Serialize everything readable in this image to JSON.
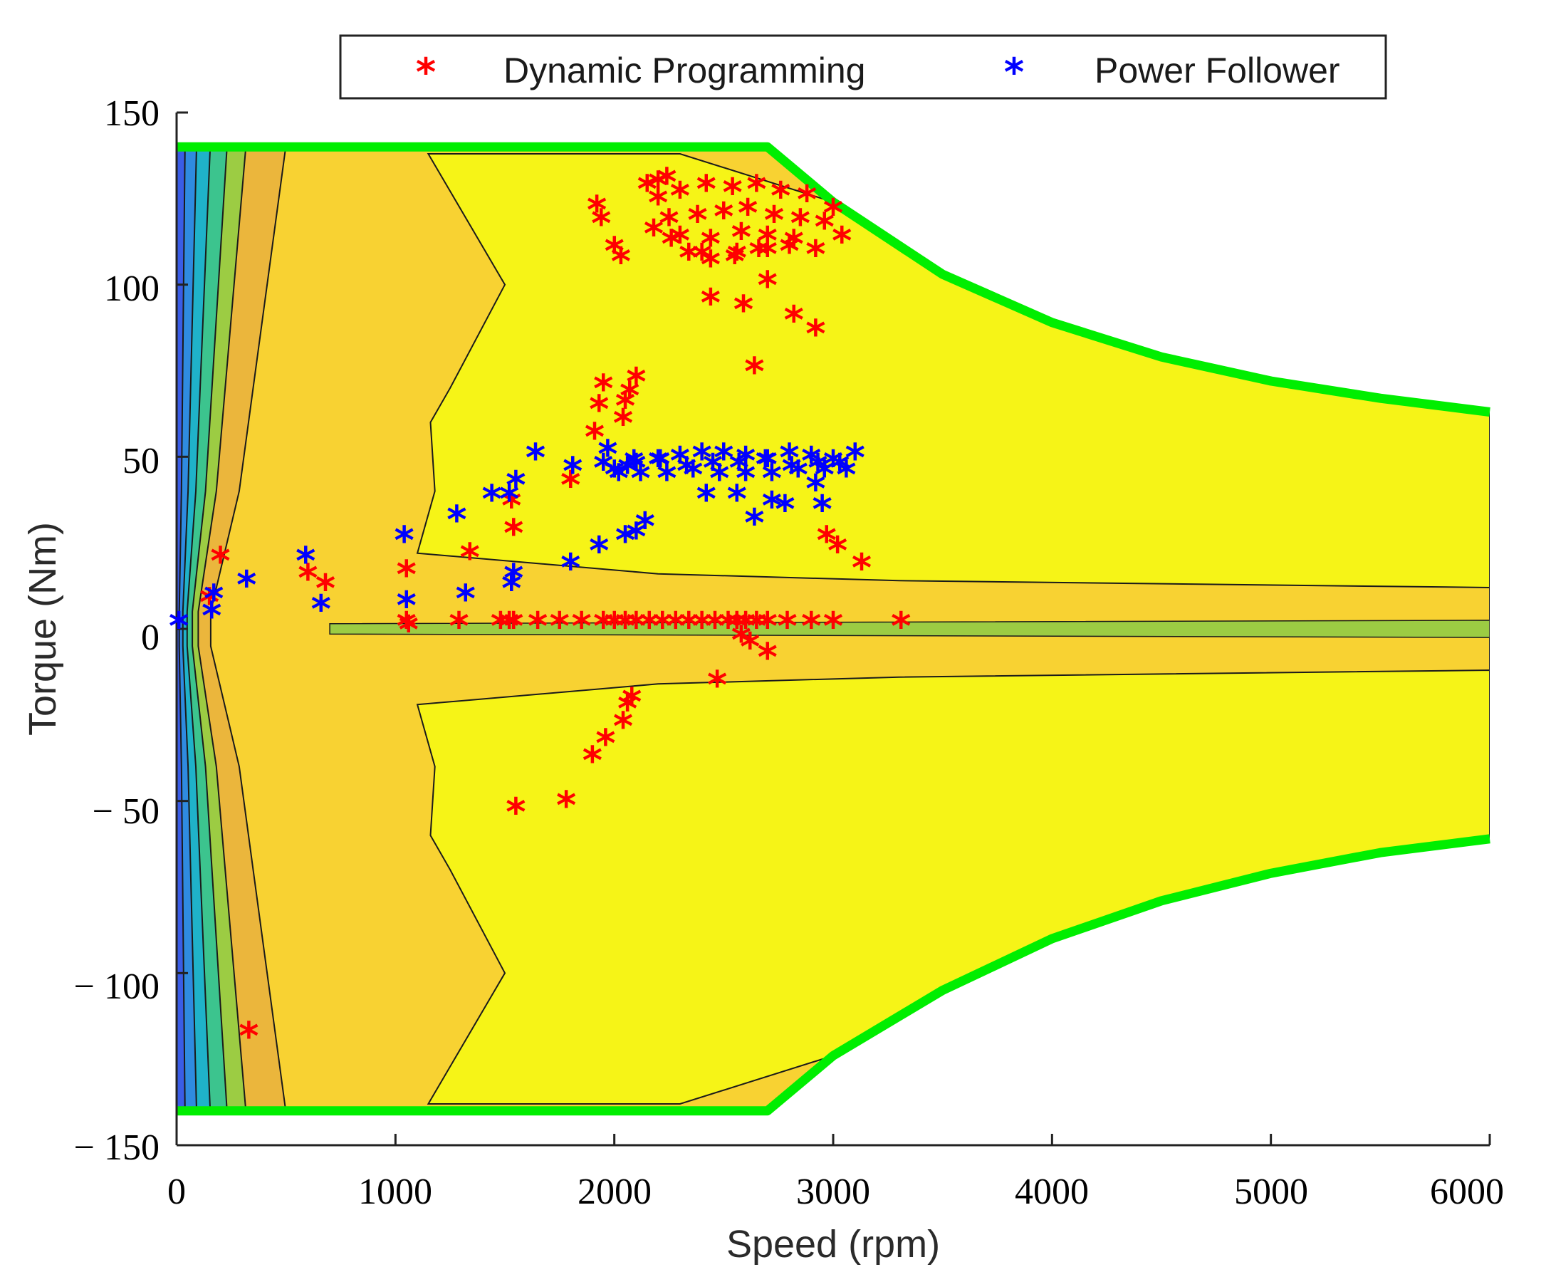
{
  "chart_data": {
    "type": "scatter",
    "title": "",
    "xlabel": "Speed (rpm)",
    "ylabel": "Torque (Nm)",
    "xlim": [
      0,
      6000
    ],
    "ylim": [
      -150,
      150
    ],
    "x_ticks": [
      "0",
      "1000",
      "2000",
      "3000",
      "4000",
      "5000",
      "6000"
    ],
    "y_ticks": [
      "150",
      "100",
      "50",
      "0",
      "− 50",
      "− 100",
      "− 150"
    ],
    "legend": {
      "position": "top",
      "entries": [
        {
          "label": "Dynamic Programming",
          "marker": "*",
          "color": "#ff0000"
        },
        {
          "label": "Power Follower",
          "marker": "*",
          "color": "#0000ff"
        }
      ]
    },
    "colors": {
      "boundary": "#00ee00",
      "dp": "#ff0000",
      "pf": "#0000ff",
      "contour_line": "#1a1a1a",
      "levels": [
        "#3b2ed6",
        "#3a5de6",
        "#2f8be0",
        "#1fb2c9",
        "#3cc48e",
        "#9ccc43",
        "#ebb63c",
        "#f8d232",
        "#f6f417"
      ]
    },
    "max_torque_envelope": [
      {
        "x": 0,
        "y": 140
      },
      {
        "x": 2700,
        "y": 140
      },
      {
        "x": 3000,
        "y": 124
      },
      {
        "x": 3500,
        "y": 103
      },
      {
        "x": 4000,
        "y": 89
      },
      {
        "x": 4500,
        "y": 79
      },
      {
        "x": 5000,
        "y": 72
      },
      {
        "x": 5500,
        "y": 67
      },
      {
        "x": 6000,
        "y": 63
      }
    ],
    "min_torque_envelope": [
      {
        "x": 0,
        "y": -140
      },
      {
        "x": 2700,
        "y": -140
      },
      {
        "x": 3000,
        "y": -124
      },
      {
        "x": 3500,
        "y": -105
      },
      {
        "x": 4000,
        "y": -90
      },
      {
        "x": 4500,
        "y": -79
      },
      {
        "x": 5000,
        "y": -71
      },
      {
        "x": 5500,
        "y": -65
      },
      {
        "x": 6000,
        "y": -61
      }
    ],
    "series": [
      {
        "name": "Dynamic Programming",
        "color": "#ff0000",
        "x": [
          330,
          150,
          200,
          600,
          680,
          1050,
          1060,
          1340,
          1530,
          1540,
          1550,
          1780,
          1800,
          1900,
          1960,
          2040,
          2060,
          2080,
          1910,
          1930,
          1950,
          2040,
          2050,
          2070,
          2100,
          2150,
          2200,
          2240,
          1920,
          1940,
          2000,
          2030,
          2180,
          2260,
          2340,
          2440,
          2560,
          2660,
          2800,
          2920,
          3040,
          2200,
          2300,
          2420,
          2540,
          2650,
          2760,
          2880,
          3000,
          2250,
          2380,
          2500,
          2610,
          2730,
          2850,
          2960,
          2300,
          2440,
          2580,
          2700,
          2820,
          2400,
          2550,
          2700,
          2440,
          2590,
          2700,
          2820,
          2920,
          2640,
          2970,
          3020,
          3130,
          2580,
          2620,
          2700,
          2470,
          1050,
          1290,
          1480,
          1520,
          1540,
          1650,
          1750,
          1850,
          1950,
          2000,
          2050,
          2100,
          2160,
          2220,
          2280,
          2340,
          2400,
          2460,
          2520,
          2560,
          2600,
          2650,
          2700,
          2790,
          2900,
          3000,
          3310
        ],
        "y": [
          -118,
          8,
          20,
          15,
          12,
          16,
          0,
          21,
          36,
          28,
          -53,
          -51,
          42,
          -38,
          -33,
          -28,
          -23,
          -21,
          56,
          64,
          70,
          60,
          65,
          68,
          72,
          128,
          129,
          130,
          122,
          118,
          110,
          107,
          115,
          112,
          108,
          106,
          108,
          109,
          110,
          109,
          113,
          124,
          126,
          128,
          127,
          128,
          126,
          125,
          121,
          118,
          119,
          120,
          121,
          119,
          118,
          117,
          113,
          112,
          114,
          113,
          112,
          108,
          107,
          109,
          95,
          93,
          100,
          90,
          86,
          75,
          26,
          23,
          18,
          -3,
          -5,
          -8,
          -16,
          1,
          1,
          1,
          1,
          1,
          1,
          1,
          1,
          1,
          1,
          1,
          1,
          1,
          1,
          1,
          1,
          1,
          1,
          1,
          1,
          1,
          1,
          1,
          1,
          1,
          1,
          1
        ]
      },
      {
        "name": "Power Follower",
        "color": "#0000ff",
        "x": [
          10,
          160,
          170,
          320,
          590,
          660,
          1040,
          1050,
          1280,
          1320,
          1440,
          1520,
          1530,
          1540,
          1550,
          1640,
          1800,
          1810,
          1930,
          1950,
          1970,
          2050,
          2100,
          2140,
          2000,
          2060,
          2100,
          2200,
          2300,
          2400,
          2500,
          2600,
          2700,
          2800,
          2900,
          3000,
          3100,
          2020,
          2120,
          2240,
          2360,
          2480,
          2600,
          2720,
          2840,
          2960,
          3060,
          2090,
          2210,
          2330,
          2450,
          2570,
          2690,
          2810,
          2930,
          3030,
          2420,
          2560,
          2640,
          2720,
          2780,
          2920,
          2950
        ],
        "y": [
          1,
          4,
          9,
          13,
          20,
          6,
          26,
          7,
          32,
          9,
          38,
          38,
          12,
          15,
          42,
          50,
          18,
          46,
          23,
          47,
          51,
          26,
          27,
          30,
          45,
          46,
          47,
          48,
          49,
          50,
          50,
          49,
          48,
          50,
          49,
          48,
          50,
          44,
          44,
          44,
          45,
          44,
          44,
          44,
          45,
          45,
          45,
          48,
          48,
          46,
          47,
          47,
          48,
          46,
          47,
          47,
          38,
          38,
          31,
          36,
          35,
          41,
          35
        ]
      }
    ]
  }
}
